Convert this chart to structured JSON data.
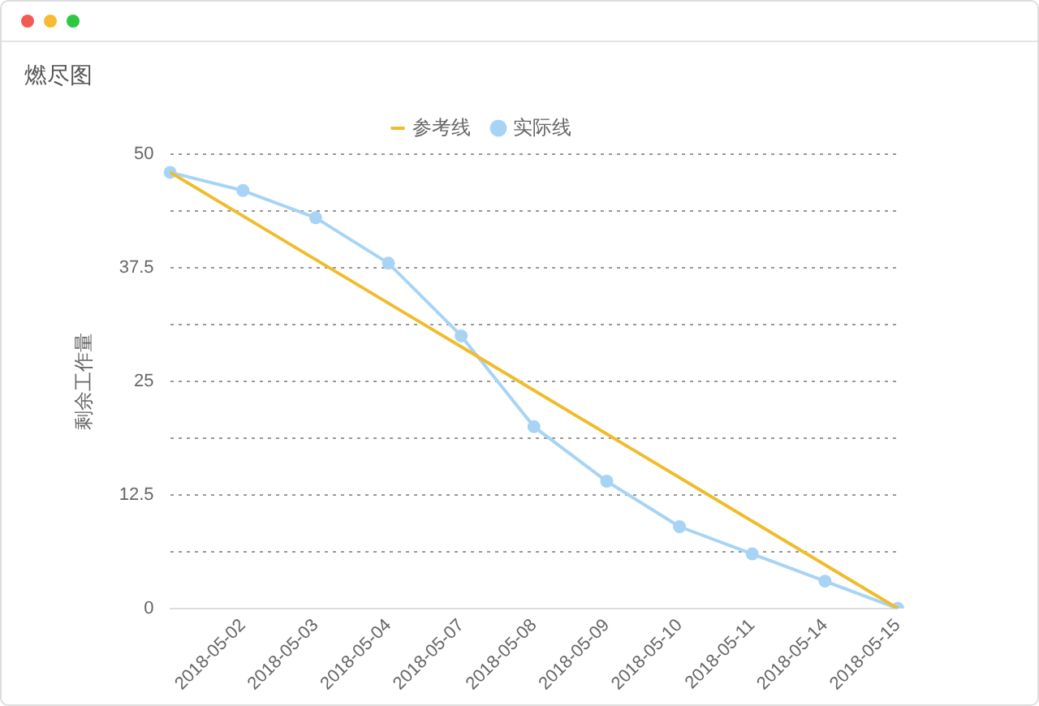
{
  "chart_data": {
    "type": "line",
    "title": "燃尽图",
    "ylabel": "剩余工作量",
    "categories": [
      null,
      "2018-05-02",
      "2018-05-03",
      "2018-05-04",
      "2018-05-07",
      "2018-05-08",
      "2018-05-09",
      "2018-05-10",
      "2018-05-11",
      "2018-05-14",
      "2018-05-15"
    ],
    "series": [
      {
        "name": "参考线",
        "color": "#f0bc2c",
        "marker": "none",
        "values": [
          48,
          43.2,
          38.4,
          33.6,
          28.8,
          24,
          19.2,
          14.4,
          9.6,
          4.8,
          0
        ]
      },
      {
        "name": "实际线",
        "color": "#a7d4f5",
        "marker": "circle",
        "values": [
          48,
          46,
          43,
          38,
          30,
          20,
          14,
          9,
          6,
          3,
          0
        ]
      }
    ],
    "ylim": [
      0,
      50
    ],
    "yticks": [
      0,
      {
        "value": 6.25,
        "label": null
      },
      12.5,
      {
        "value": 18.75,
        "label": null
      },
      25,
      {
        "value": 31.25,
        "label": null
      },
      37.5,
      {
        "value": 43.75,
        "label": null
      },
      50
    ],
    "grid": "y",
    "legend": "top",
    "line_style": "solid"
  }
}
